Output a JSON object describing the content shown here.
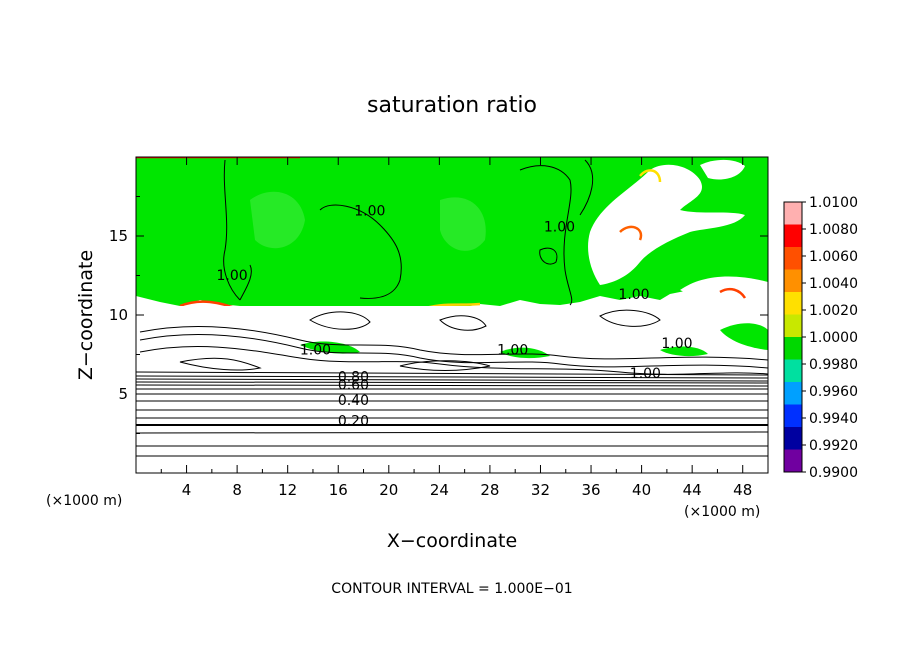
{
  "chart_data": {
    "type": "heatmap",
    "title": "saturation ratio",
    "xlabel": "X−coordinate",
    "ylabel": "Z−coordinate",
    "x_unit_note_left": "(×1000 m)",
    "x_unit_note_right": "(×1000 m)",
    "xlim": [
      0,
      50
    ],
    "ylim": [
      0,
      20
    ],
    "x_ticks": [
      "4",
      "8",
      "12",
      "16",
      "20",
      "24",
      "28",
      "32",
      "36",
      "40",
      "44",
      "48"
    ],
    "y_ticks": [
      "5",
      "10",
      "15"
    ],
    "colorbar": {
      "labels": [
        "1.0100",
        "1.0080",
        "1.0060",
        "1.0040",
        "1.0020",
        "1.0000",
        "0.9980",
        "0.9960",
        "0.9940",
        "0.9920",
        "0.9900"
      ],
      "colors": [
        "#ffb0b0",
        "#ff0000",
        "#ff5000",
        "#ff9000",
        "#ffe000",
        "#c8e800",
        "#00d800",
        "#00e0a0",
        "#00a0ff",
        "#0030ff",
        "#0000a0",
        "#7000a0"
      ],
      "range": [
        0.99,
        1.01
      ]
    },
    "contour_labels": [
      {
        "text": "1.00",
        "x": 18.5,
        "y": 16.3
      },
      {
        "text": "1.00",
        "x": 7.6,
        "y": 12.2
      },
      {
        "text": "1.00",
        "x": 33.5,
        "y": 15.3
      },
      {
        "text": "1.00",
        "x": 39.4,
        "y": 11.0
      },
      {
        "text": "1.00",
        "x": 14.2,
        "y": 7.5
      },
      {
        "text": "1.00",
        "x": 29.8,
        "y": 7.5
      },
      {
        "text": "1.00",
        "x": 42.8,
        "y": 7.9
      },
      {
        "text": "1.00",
        "x": 40.3,
        "y": 6.0
      },
      {
        "text": "0.80",
        "x": 17.2,
        "y": 5.8
      },
      {
        "text": "0.60",
        "x": 17.2,
        "y": 5.3
      },
      {
        "text": "0.40",
        "x": 17.2,
        "y": 4.3
      },
      {
        "text": "0.20",
        "x": 17.2,
        "y": 3.0
      }
    ],
    "contour_levels_z": [
      0.4,
      0.6,
      0.8,
      1.0,
      1.6,
      2.2,
      3.0,
      3.6,
      4.2,
      4.6,
      5.0,
      5.3,
      5.6,
      5.8,
      6.0,
      6.2
    ],
    "footer": "CONTOUR INTERVAL = 1.000E−01"
  }
}
